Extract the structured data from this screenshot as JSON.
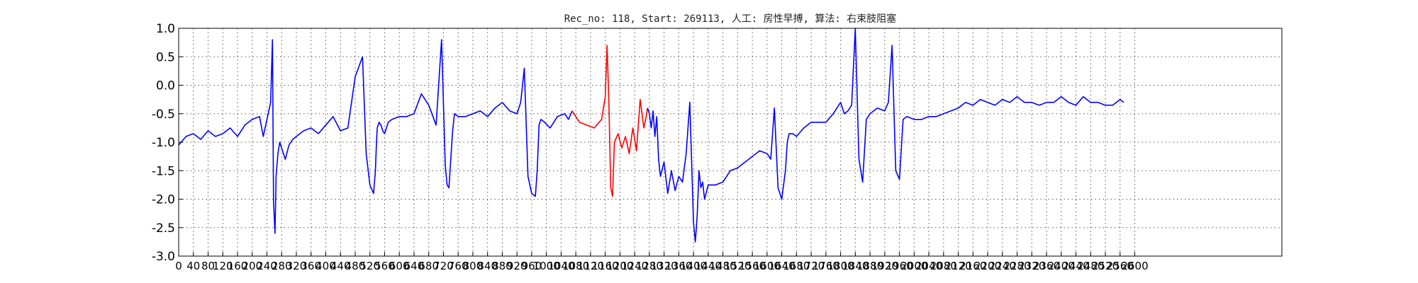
{
  "chart_data": {
    "type": "line",
    "title": "Rec_no: 118, Start: 269113, 人工: 房性早搏, 算法: 右束肢阻塞",
    "xlabel": "",
    "ylabel": "",
    "xlim": [
      0,
      3000
    ],
    "ylim": [
      -3.0,
      1.0
    ],
    "x_ticks": [
      0,
      40,
      80,
      120,
      160,
      200,
      240,
      280,
      320,
      360,
      400,
      440,
      480,
      520,
      560,
      600,
      640,
      680,
      720,
      760,
      800,
      840,
      880,
      920,
      960,
      1000,
      1040,
      1080,
      1120,
      1160,
      1200,
      1240,
      1280,
      1320,
      1360,
      1400,
      1440,
      1480,
      1520,
      1560,
      1600,
      1640,
      1680,
      1720,
      1760,
      1800,
      1840,
      1880,
      1920,
      1960,
      2000,
      2040,
      2080,
      2120,
      2160,
      2200,
      2240,
      2280,
      2320,
      2360,
      2400,
      2440,
      2480,
      2520,
      2560,
      2600
    ],
    "y_ticks": [
      "1.0",
      "0.5",
      "0.0",
      "-0.5",
      "-1.0",
      "-1.5",
      "-2.0",
      "-2.5",
      "-3.0"
    ],
    "grid": true,
    "colors": {
      "normal": "#0000ff",
      "highlight": "#ff0000",
      "axes": "#000000"
    },
    "series": [
      {
        "color": "#0000ff",
        "x": [
          0,
          20,
          40,
          60,
          80,
          100,
          120,
          140,
          160,
          180,
          200,
          220,
          230,
          240,
          250,
          255,
          258,
          262,
          265,
          270,
          275,
          280,
          290,
          300,
          310,
          320,
          340,
          360,
          380,
          400,
          420,
          440,
          460,
          480,
          500,
          510,
          520,
          530,
          535,
          538,
          540,
          545,
          550,
          555,
          560,
          570,
          580,
          600,
          620,
          640,
          660,
          680,
          700,
          715,
          725,
          730,
          735,
          740,
          745,
          750,
          760,
          780,
          800,
          820,
          840,
          860,
          880,
          900,
          920,
          930,
          940,
          950,
          960,
          970,
          975,
          980,
          985,
          995,
          1010,
          1030,
          1050,
          1060,
          1070
        ],
        "y": [
          -1.05,
          -0.9,
          -0.85,
          -0.95,
          -0.8,
          -0.9,
          -0.85,
          -0.75,
          -0.9,
          -0.7,
          -0.6,
          -0.55,
          -0.9,
          -0.6,
          -0.3,
          0.8,
          -2.05,
          -2.6,
          -1.6,
          -1.2,
          -1.0,
          -1.1,
          -1.3,
          -1.05,
          -0.95,
          -0.9,
          -0.8,
          -0.75,
          -0.85,
          -0.7,
          -0.55,
          -0.8,
          -0.75,
          0.15,
          0.5,
          -1.2,
          -1.75,
          -1.9,
          -1.5,
          -1.0,
          -0.75,
          -0.65,
          -0.7,
          -0.8,
          -0.85,
          -0.65,
          -0.6,
          -0.55,
          -0.55,
          -0.5,
          -0.15,
          -0.35,
          -0.7,
          0.8,
          -1.4,
          -1.75,
          -1.8,
          -1.3,
          -0.8,
          -0.5,
          -0.55,
          -0.55,
          -0.5,
          -0.45,
          -0.55,
          -0.4,
          -0.3,
          -0.45,
          -0.5,
          -0.3,
          0.3,
          -1.6,
          -1.9,
          -1.95,
          -1.5,
          -0.7,
          -0.6,
          -0.65,
          -0.75,
          -0.55,
          -0.5,
          -0.6,
          -0.45
        ]
      },
      {
        "color": "#ff0000",
        "x": [
          1070,
          1090,
          1110,
          1130,
          1150,
          1160,
          1165,
          1170,
          1175,
          1180,
          1185,
          1195,
          1205,
          1215,
          1225,
          1235,
          1245,
          1255,
          1265,
          1270,
          1275
        ],
        "y": [
          -0.45,
          -0.65,
          -0.7,
          -0.75,
          -0.6,
          -0.2,
          0.7,
          -0.3,
          -1.8,
          -1.95,
          -1.0,
          -0.85,
          -1.1,
          -0.9,
          -1.2,
          -0.75,
          -1.15,
          -0.25,
          -0.75,
          -0.6,
          -0.4
        ]
      },
      {
        "color": "#0000ff",
        "x": [
          1275,
          1280,
          1285,
          1290,
          1295,
          1300,
          1305,
          1310,
          1320,
          1330,
          1340,
          1350,
          1360,
          1370,
          1380,
          1390,
          1400,
          1405,
          1410,
          1415,
          1420,
          1425,
          1430,
          1440,
          1460,
          1480,
          1500,
          1520,
          1540,
          1560,
          1580,
          1600,
          1610,
          1620,
          1630,
          1640,
          1650,
          1655,
          1660,
          1670,
          1680,
          1700,
          1720,
          1740,
          1760,
          1780,
          1800,
          1810,
          1820,
          1830,
          1840,
          1850,
          1860,
          1870,
          1880,
          1900,
          1920,
          1930,
          1940,
          1950,
          1960,
          1970,
          1980,
          2000,
          2020,
          2040,
          2060,
          2080,
          2100,
          2120,
          2140,
          2160,
          2180,
          2200,
          2220,
          2240,
          2260,
          2280,
          2300,
          2320,
          2340,
          2360,
          2380,
          2400,
          2420,
          2440,
          2460,
          2480,
          2500,
          2520,
          2540,
          2560,
          2570
        ],
        "y": [
          -0.4,
          -0.5,
          -0.75,
          -0.45,
          -0.9,
          -0.55,
          -1.3,
          -1.6,
          -1.35,
          -1.9,
          -1.5,
          -1.85,
          -1.6,
          -1.7,
          -1.2,
          -0.3,
          -2.4,
          -2.75,
          -2.3,
          -1.5,
          -1.8,
          -1.7,
          -2.0,
          -1.75,
          -1.75,
          -1.7,
          -1.5,
          -1.45,
          -1.35,
          -1.25,
          -1.15,
          -1.2,
          -1.3,
          -0.4,
          -1.8,
          -2.0,
          -1.5,
          -1.0,
          -0.85,
          -0.85,
          -0.9,
          -0.75,
          -0.65,
          -0.65,
          -0.65,
          -0.5,
          -0.3,
          -0.5,
          -0.45,
          -0.35,
          1.0,
          -1.3,
          -1.7,
          -0.6,
          -0.5,
          -0.4,
          -0.45,
          -0.3,
          0.7,
          -1.5,
          -1.65,
          -0.6,
          -0.55,
          -0.6,
          -0.6,
          -0.55,
          -0.55,
          -0.5,
          -0.45,
          -0.4,
          -0.3,
          -0.35,
          -0.25,
          -0.3,
          -0.35,
          -0.25,
          -0.3,
          -0.2,
          -0.3,
          -0.3,
          -0.35,
          -0.3,
          -0.3,
          -0.2,
          -0.3,
          -0.35,
          -0.2,
          -0.3,
          -0.3,
          -0.35,
          -0.35,
          -0.25,
          -0.3
        ]
      }
    ]
  }
}
